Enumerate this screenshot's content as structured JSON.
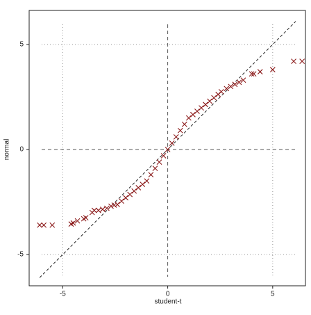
{
  "chart_data": {
    "type": "scatter",
    "x_label": "student-t",
    "y_label": "normal",
    "xlim": [
      -6.6,
      6.56
    ],
    "ylim": [
      -6.49,
      6.62
    ],
    "xticks": [
      -5,
      0,
      5
    ],
    "yticks": [
      -5,
      0,
      5
    ],
    "grid": true,
    "reference_line": [
      -6.1,
      6.1
    ],
    "series": [
      {
        "color": "#8b1a1a",
        "marker": "x",
        "x": [
          -6.1,
          -5.9,
          -5.5,
          -4.6,
          -4.5,
          -4.3,
          -4.0,
          -3.9,
          -3.6,
          -3.5,
          -3.3,
          -3.1,
          -2.9,
          -2.7,
          -2.55,
          -2.4,
          -2.2,
          -2.0,
          -1.8,
          -1.6,
          -1.4,
          -1.2,
          -1.0,
          -0.8,
          -0.6,
          -0.4,
          -0.2,
          0,
          0.2,
          0.4,
          0.6,
          0.8,
          1.0,
          1.2,
          1.4,
          1.6,
          1.8,
          2.0,
          2.2,
          2.4,
          2.55,
          2.8,
          3.0,
          3.2,
          3.4,
          3.6,
          4.0,
          4.1,
          4.4,
          5.0,
          6.0,
          6.4
        ],
        "y": [
          -3.6,
          -3.6,
          -3.6,
          -3.55,
          -3.5,
          -3.4,
          -3.3,
          -3.25,
          -3.0,
          -2.9,
          -2.9,
          -2.85,
          -2.8,
          -2.7,
          -2.65,
          -2.62,
          -2.46,
          -2.3,
          -2.14,
          -1.98,
          -1.82,
          -1.66,
          -1.5,
          -1.2,
          -0.9,
          -0.6,
          -0.3,
          0,
          0.3,
          0.6,
          0.9,
          1.2,
          1.5,
          1.66,
          1.82,
          1.98,
          2.14,
          2.3,
          2.46,
          2.62,
          2.75,
          2.9,
          3.0,
          3.1,
          3.2,
          3.3,
          3.6,
          3.6,
          3.7,
          3.8,
          4.2,
          4.2
        ]
      }
    ]
  }
}
